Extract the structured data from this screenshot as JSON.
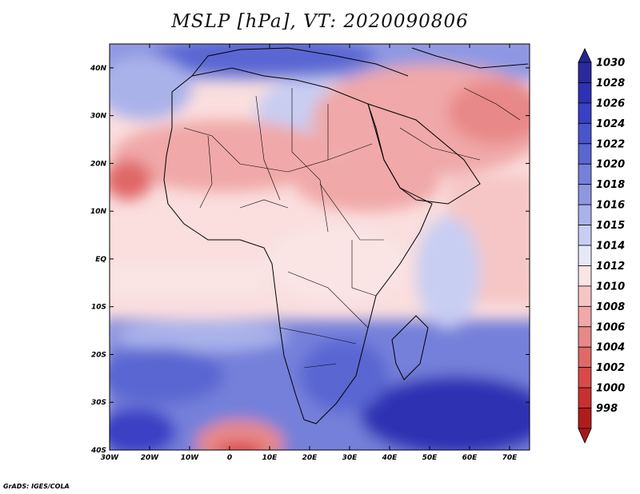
{
  "title": "MSLP [hPa], VT: 2020090806",
  "credit": "GrADS: IGES/COLA",
  "map": {
    "variable": "Mean sea level pressure",
    "units": "hPa",
    "valid_time": "2020090806",
    "lon_range": [
      -30,
      75
    ],
    "lat_range": [
      -40,
      45
    ],
    "x_ticks": [
      "30W",
      "20W",
      "10W",
      "0",
      "10E",
      "20E",
      "30E",
      "40E",
      "50E",
      "60E",
      "70E"
    ],
    "y_ticks": [
      "40N",
      "30N",
      "20N",
      "10N",
      "EQ",
      "10S",
      "20S",
      "30S",
      "40S"
    ]
  },
  "colorbar": {
    "levels": [
      "1030",
      "1028",
      "1026",
      "1024",
      "1022",
      "1020",
      "1018",
      "1016",
      "1015",
      "1014",
      "1012",
      "1010",
      "1008",
      "1006",
      "1004",
      "1002",
      "1000",
      "998"
    ],
    "colors": [
      "#2a2a9e",
      "#2e31b2",
      "#3a40c4",
      "#4a54cc",
      "#5a66d2",
      "#7480da",
      "#8e98e2",
      "#aab2ea",
      "#c8cef2",
      "#e6e8f8",
      "#fae4e4",
      "#f6c6c6",
      "#f0a8a8",
      "#e88888",
      "#e06868",
      "#d84a4a",
      "#c83030",
      "#b01c1c"
    ],
    "top_arrow_color": "#262692",
    "bottom_arrow_color": "#a81818"
  }
}
